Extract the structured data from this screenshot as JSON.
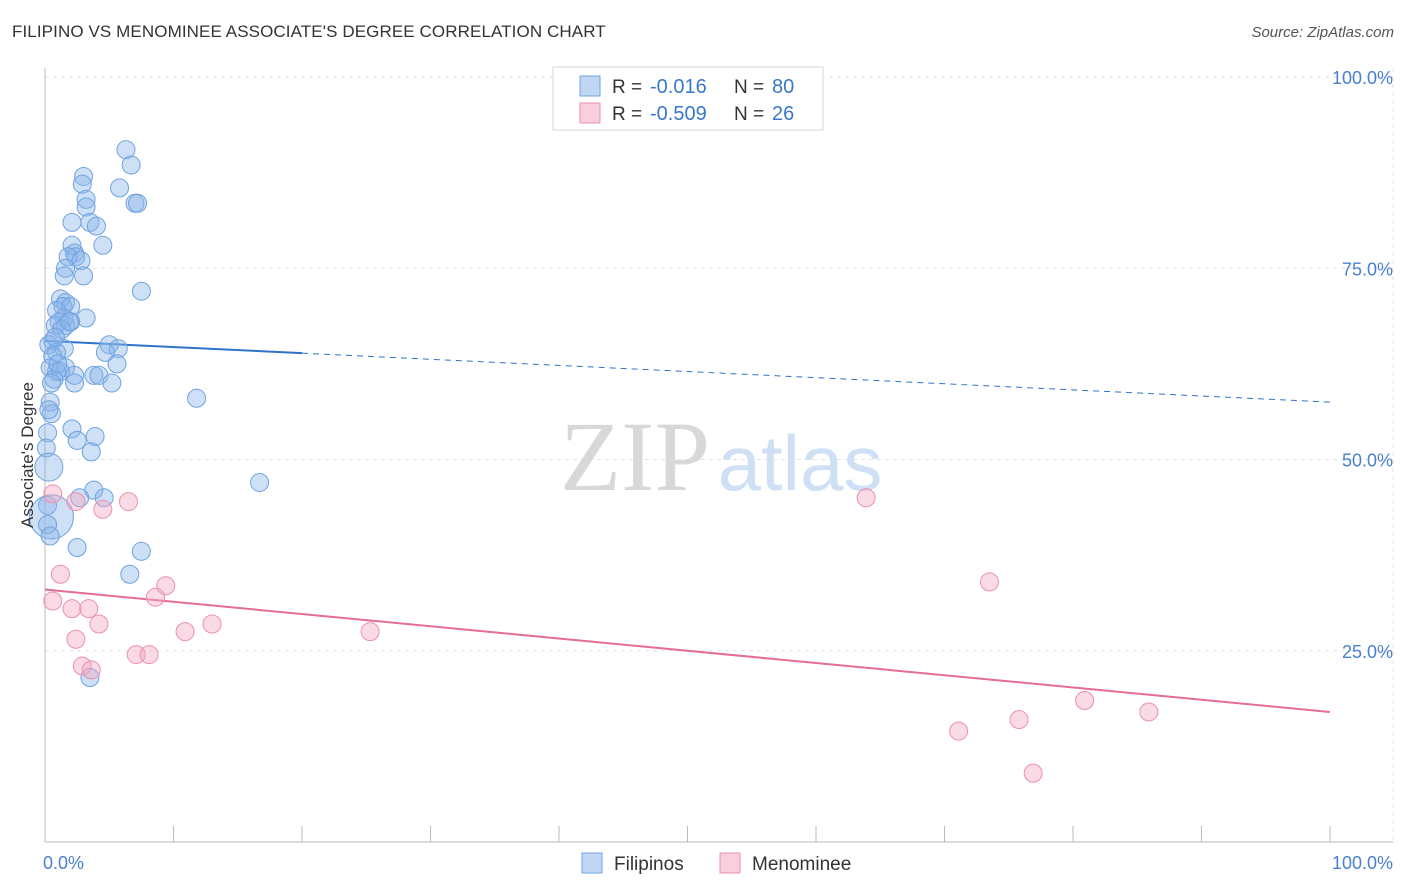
{
  "title": "FILIPINO VS MENOMINEE ASSOCIATE'S DEGREE CORRELATION CHART",
  "source": "Source: ZipAtlas.com",
  "watermark": {
    "zip": "ZIP",
    "atlas": "atlas"
  },
  "chart_data": {
    "type": "scatter",
    "title": "FILIPINO VS MENOMINEE ASSOCIATE'S DEGREE CORRELATION CHART",
    "xlabel": "",
    "ylabel": "Associate's Degree",
    "xlim": [
      0,
      100
    ],
    "ylim": [
      0,
      100
    ],
    "x_tick_labels": [
      "0.0%",
      "100.0%"
    ],
    "y_ticks": [
      25,
      50,
      75,
      100
    ],
    "y_tick_labels": [
      "25.0%",
      "50.0%",
      "75.0%",
      "100.0%"
    ],
    "grid": true,
    "legend_top": [
      {
        "r_label": "R =",
        "r_value": "-0.016",
        "n_label": "N =",
        "n_value": "80",
        "color": "#4a90d9"
      },
      {
        "r_label": "R =",
        "r_value": "-0.509",
        "n_label": "N =",
        "n_value": "26",
        "color": "#e56b9a"
      }
    ],
    "series": [
      {
        "name": "Filipinos",
        "color": "#8ab6ea",
        "edge": "#6fa3e0",
        "line_color": "#2f72c9",
        "trend": {
          "x_solid_end": 20,
          "y_at_0": 65.5,
          "y_at_100": 57.5
        },
        "points": [
          [
            6.3,
            90.5
          ],
          [
            6.7,
            88.5
          ],
          [
            3.0,
            87.0
          ],
          [
            2.9,
            86.0
          ],
          [
            5.8,
            85.5
          ],
          [
            3.2,
            84.0
          ],
          [
            7.0,
            83.5
          ],
          [
            7.2,
            83.5
          ],
          [
            3.2,
            83.0
          ],
          [
            3.5,
            81.0
          ],
          [
            2.1,
            81.0
          ],
          [
            4.0,
            80.5
          ],
          [
            2.1,
            78.0
          ],
          [
            4.5,
            78.0
          ],
          [
            2.3,
            77.0
          ],
          [
            2.4,
            76.5
          ],
          [
            1.8,
            76.5
          ],
          [
            2.8,
            76.0
          ],
          [
            1.6,
            75.0
          ],
          [
            1.5,
            74.0
          ],
          [
            3.0,
            74.0
          ],
          [
            7.5,
            72.0
          ],
          [
            1.2,
            71.0
          ],
          [
            1.6,
            70.5
          ],
          [
            1.4,
            70.0
          ],
          [
            2.0,
            70.0
          ],
          [
            0.9,
            69.5
          ],
          [
            3.2,
            68.5
          ],
          [
            1.5,
            68.5
          ],
          [
            1.1,
            68.0
          ],
          [
            2.0,
            68.0
          ],
          [
            1.6,
            67.5
          ],
          [
            0.8,
            67.5
          ],
          [
            1.3,
            67.0
          ],
          [
            0.6,
            65.5
          ],
          [
            0.3,
            65.0
          ],
          [
            5.0,
            65.0
          ],
          [
            5.7,
            64.5
          ],
          [
            1.5,
            64.5
          ],
          [
            0.9,
            64.0
          ],
          [
            4.7,
            64.0
          ],
          [
            0.6,
            63.5
          ],
          [
            5.6,
            62.5
          ],
          [
            0.4,
            62.0
          ],
          [
            1.6,
            62.0
          ],
          [
            0.9,
            61.5
          ],
          [
            1.2,
            61.5
          ],
          [
            2.3,
            61.0
          ],
          [
            3.8,
            61.0
          ],
          [
            4.2,
            61.0
          ],
          [
            0.7,
            60.5
          ],
          [
            2.3,
            60.0
          ],
          [
            5.2,
            60.0
          ],
          [
            0.5,
            60.0
          ],
          [
            11.8,
            58.0
          ],
          [
            0.4,
            57.5
          ],
          [
            0.5,
            56.0
          ],
          [
            2.1,
            54.0
          ],
          [
            0.2,
            53.5
          ],
          [
            3.9,
            53.0
          ],
          [
            2.5,
            52.5
          ],
          [
            0.1,
            51.5
          ],
          [
            3.6,
            51.0
          ],
          [
            0.3,
            49.0
          ],
          [
            16.7,
            47.0
          ],
          [
            3.8,
            46.0
          ],
          [
            4.6,
            45.0
          ],
          [
            2.7,
            45.0
          ],
          [
            0.2,
            44.0
          ],
          [
            0.5,
            42.5
          ],
          [
            0.2,
            41.5
          ],
          [
            0.4,
            40.0
          ],
          [
            2.5,
            38.5
          ],
          [
            7.5,
            38.0
          ],
          [
            6.6,
            35.0
          ],
          [
            3.5,
            21.5
          ],
          [
            0.3,
            56.5
          ],
          [
            1.9,
            68.0
          ],
          [
            0.8,
            66.0
          ],
          [
            1.0,
            62.5
          ]
        ],
        "sizes": {
          "large": [
            [
              0.2,
              51.5,
              14
            ],
            [
              0.3,
              49.0,
              14
            ],
            [
              0.4,
              44.0,
              16
            ],
            [
              0.5,
              42.5,
              22
            ]
          ]
        }
      },
      {
        "name": "Menominee",
        "color": "#f4a6c1",
        "edge": "#ec8fb0",
        "line_color": "#e56b9a",
        "trend": {
          "x_solid_end": 100,
          "y_at_0": 33.0,
          "y_at_100": 17.0
        },
        "points": [
          [
            0.6,
            45.5
          ],
          [
            2.4,
            44.5
          ],
          [
            6.5,
            44.5
          ],
          [
            4.5,
            43.5
          ],
          [
            63.9,
            45.0
          ],
          [
            1.2,
            35.0
          ],
          [
            73.5,
            34.0
          ],
          [
            9.4,
            33.5
          ],
          [
            8.6,
            32.0
          ],
          [
            0.6,
            31.5
          ],
          [
            2.1,
            30.5
          ],
          [
            3.4,
            30.5
          ],
          [
            4.2,
            28.5
          ],
          [
            13.0,
            28.5
          ],
          [
            10.9,
            27.5
          ],
          [
            25.3,
            27.5
          ],
          [
            2.4,
            26.5
          ],
          [
            7.1,
            24.5
          ],
          [
            8.1,
            24.5
          ],
          [
            2.9,
            23.0
          ],
          [
            3.6,
            22.5
          ],
          [
            80.9,
            18.5
          ],
          [
            85.9,
            17.0
          ],
          [
            75.8,
            16.0
          ],
          [
            71.1,
            14.5
          ],
          [
            76.9,
            9.0
          ]
        ]
      }
    ]
  },
  "legend_bottom": [
    {
      "label": "Filipinos",
      "color": "#8ab6ea"
    },
    {
      "label": "Menominee",
      "color": "#f4a6c1"
    }
  ]
}
